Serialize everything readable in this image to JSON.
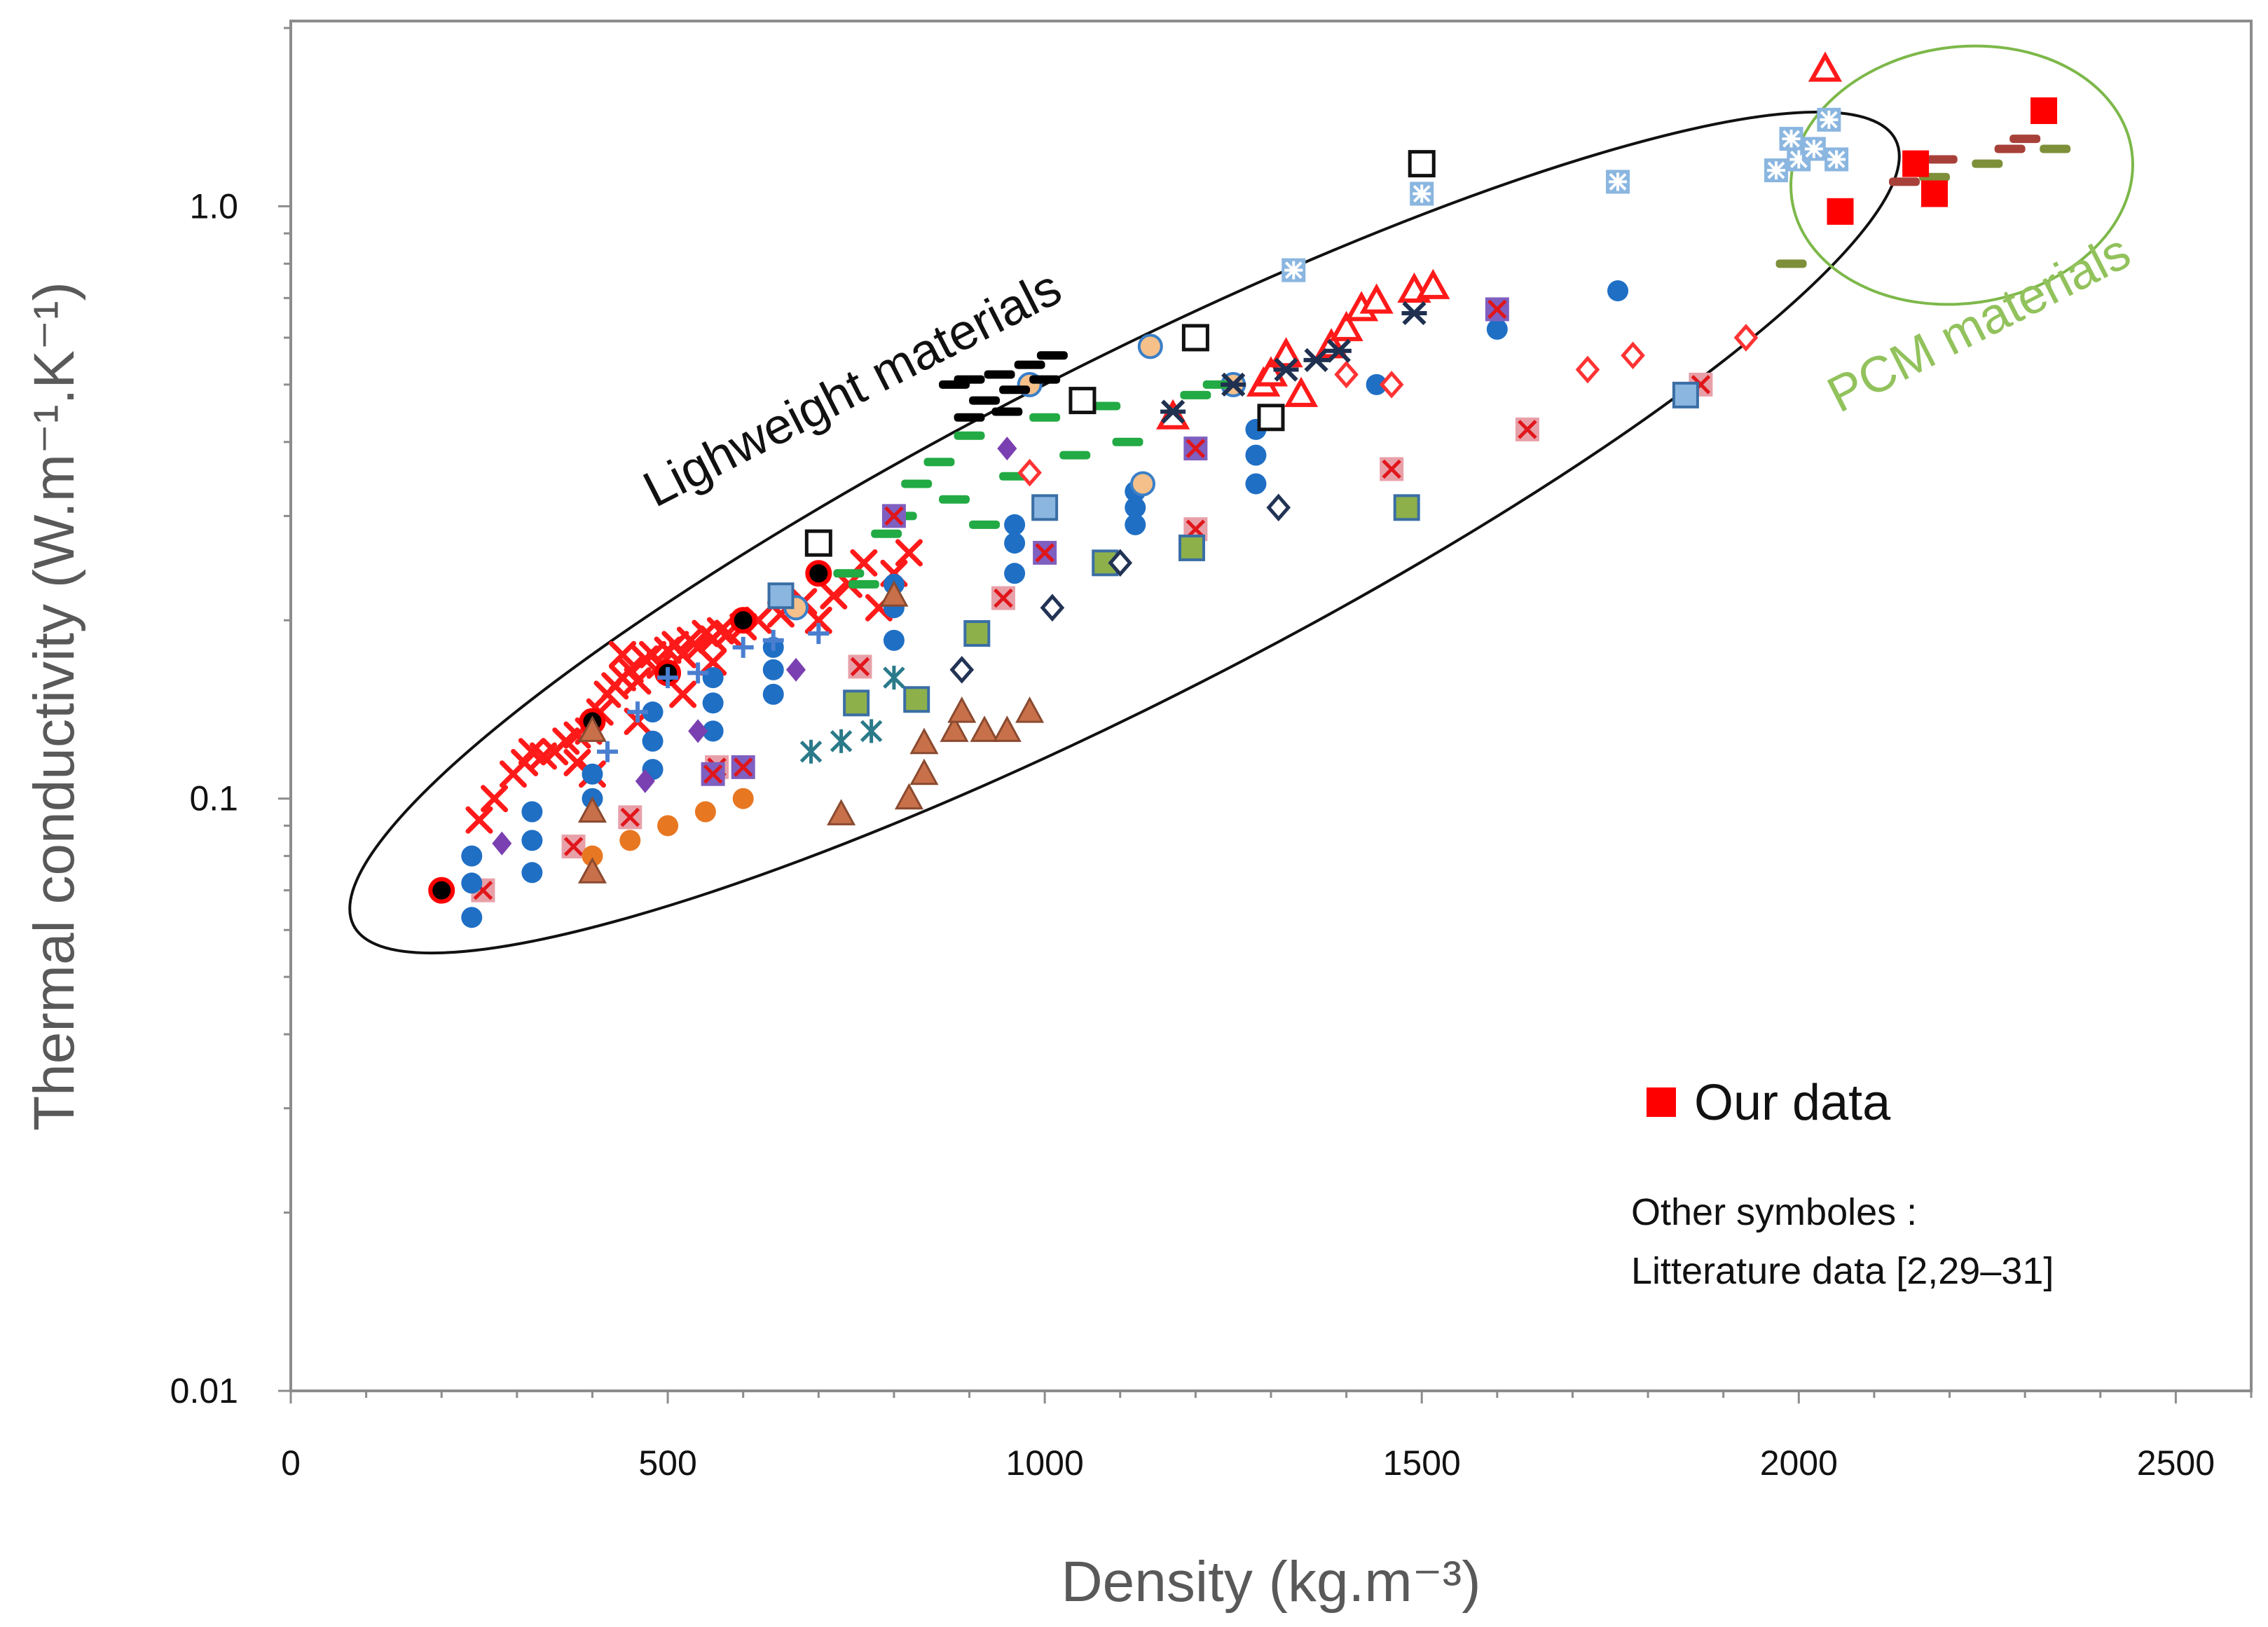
{
  "chart_data": {
    "type": "scatter",
    "title": "",
    "xlabel": "Density (kg.m⁻³)",
    "ylabel": "Thermal conductivity (W.m⁻¹.K⁻¹)",
    "x_axis": {
      "scale": "linear",
      "range": [
        0,
        2600
      ],
      "ticks": [
        0,
        500,
        1000,
        1500,
        2000,
        2500
      ]
    },
    "y_axis": {
      "scale": "log",
      "range": [
        0.01,
        2.0
      ],
      "ticks": [
        0.01,
        0.1,
        1.0
      ],
      "tick_labels": [
        "0.01",
        "0.1",
        "1.0"
      ]
    },
    "grid": false,
    "regions": [
      {
        "label": "Lighweight materials",
        "color": "#111111"
      },
      {
        "label": "PCM materials",
        "color": "#92c25c"
      }
    ],
    "legend": {
      "label": "Our data",
      "placement": "lower-right",
      "color": "#ff0000"
    },
    "note": [
      "Other symboles :",
      "Litterature data [2,29–31]"
    ],
    "series": [
      {
        "name": "Our data",
        "marker": "square-filled",
        "color": "#ff0000",
        "points": [
          [
            2055,
            0.98
          ],
          [
            2155,
            1.18
          ],
          [
            2180,
            1.05
          ],
          [
            2325,
            1.45
          ]
        ]
      },
      {
        "name": "Lit. red crosses",
        "marker": "x",
        "color": "#ff1a1a",
        "points": [
          [
            250,
            0.092
          ],
          [
            270,
            0.1
          ],
          [
            295,
            0.11
          ],
          [
            310,
            0.115
          ],
          [
            320,
            0.12
          ],
          [
            335,
            0.118
          ],
          [
            350,
            0.12
          ],
          [
            365,
            0.125
          ],
          [
            380,
            0.128
          ],
          [
            395,
            0.13
          ],
          [
            410,
            0.14
          ],
          [
            420,
            0.15
          ],
          [
            430,
            0.155
          ],
          [
            440,
            0.16
          ],
          [
            450,
            0.165
          ],
          [
            460,
            0.158
          ],
          [
            470,
            0.172
          ],
          [
            480,
            0.175
          ],
          [
            490,
            0.168
          ],
          [
            500,
            0.178
          ],
          [
            510,
            0.182
          ],
          [
            520,
            0.175
          ],
          [
            530,
            0.185
          ],
          [
            540,
            0.18
          ],
          [
            550,
            0.19
          ],
          [
            560,
            0.186
          ],
          [
            570,
            0.192
          ],
          [
            580,
            0.19
          ],
          [
            600,
            0.195
          ],
          [
            620,
            0.2
          ],
          [
            650,
            0.205
          ],
          [
            680,
            0.215
          ],
          [
            700,
            0.2
          ],
          [
            720,
            0.22
          ],
          [
            740,
            0.23
          ],
          [
            760,
            0.25
          ],
          [
            780,
            0.21
          ],
          [
            800,
            0.24
          ],
          [
            820,
            0.26
          ],
          [
            440,
            0.175
          ],
          [
            460,
            0.135
          ],
          [
            520,
            0.15
          ],
          [
            560,
            0.17
          ],
          [
            380,
            0.115
          ],
          [
            400,
            0.11
          ]
        ]
      },
      {
        "name": "Lit. red squares with cross",
        "marker": "square-x",
        "color": "#e8a0a8",
        "points": [
          [
            255,
            0.07
          ],
          [
            375,
            0.083
          ],
          [
            450,
            0.093
          ],
          [
            565,
            0.113
          ],
          [
            755,
            0.167
          ],
          [
            945,
            0.218
          ],
          [
            1200,
            0.285
          ],
          [
            1460,
            0.36
          ],
          [
            1640,
            0.42
          ],
          [
            1870,
            0.5
          ]
        ]
      },
      {
        "name": "Lit. blue circles",
        "marker": "circle",
        "color": "#1f6fc5",
        "points": [
          [
            240,
            0.063
          ],
          [
            240,
            0.072
          ],
          [
            240,
            0.08
          ],
          [
            320,
            0.075
          ],
          [
            320,
            0.085
          ],
          [
            320,
            0.095
          ],
          [
            400,
            0.1
          ],
          [
            400,
            0.11
          ],
          [
            480,
            0.112
          ],
          [
            480,
            0.125
          ],
          [
            480,
            0.14
          ],
          [
            560,
            0.13
          ],
          [
            560,
            0.145
          ],
          [
            560,
            0.16
          ],
          [
            640,
            0.15
          ],
          [
            640,
            0.165
          ],
          [
            640,
            0.18
          ],
          [
            800,
            0.185
          ],
          [
            800,
            0.21
          ],
          [
            800,
            0.23
          ],
          [
            960,
            0.24
          ],
          [
            960,
            0.27
          ],
          [
            960,
            0.29
          ],
          [
            1120,
            0.29
          ],
          [
            1120,
            0.31
          ],
          [
            1120,
            0.33
          ],
          [
            1280,
            0.34
          ],
          [
            1280,
            0.38
          ],
          [
            1280,
            0.42
          ],
          [
            1440,
            0.5
          ],
          [
            1600,
            0.62
          ],
          [
            1760,
            0.72
          ]
        ]
      },
      {
        "name": "Lit. orange circles",
        "marker": "circle",
        "color": "#e87722",
        "points": [
          [
            400,
            0.08
          ],
          [
            450,
            0.085
          ],
          [
            500,
            0.09
          ],
          [
            550,
            0.095
          ],
          [
            600,
            0.1
          ]
        ]
      },
      {
        "name": "Lit. light-orange circles",
        "marker": "circle-outlined",
        "color": "#f5c08a",
        "points": [
          [
            980,
            0.5
          ],
          [
            1140,
            0.58
          ],
          [
            1250,
            0.5
          ],
          [
            1130,
            0.34
          ],
          [
            670,
            0.21
          ]
        ]
      },
      {
        "name": "Lit. black dots",
        "marker": "dot-ringed",
        "color": "#000000",
        "points": [
          [
            200,
            0.07
          ],
          [
            400,
            0.135
          ],
          [
            500,
            0.163
          ],
          [
            600,
            0.2
          ],
          [
            700,
            0.24
          ]
        ]
      },
      {
        "name": "Lit. black dashes",
        "marker": "dash",
        "color": "#000000",
        "points": [
          [
            880,
            0.5
          ],
          [
            900,
            0.44
          ],
          [
            920,
            0.47
          ],
          [
            940,
            0.52
          ],
          [
            960,
            0.49
          ],
          [
            980,
            0.54
          ],
          [
            1000,
            0.51
          ],
          [
            1010,
            0.56
          ],
          [
            950,
            0.45
          ],
          [
            900,
            0.51
          ]
        ]
      },
      {
        "name": "Lit. green dashes",
        "marker": "dash",
        "color": "#22aa44",
        "points": [
          [
            740,
            0.24
          ],
          [
            760,
            0.23
          ],
          [
            790,
            0.28
          ],
          [
            810,
            0.3
          ],
          [
            830,
            0.34
          ],
          [
            860,
            0.37
          ],
          [
            880,
            0.32
          ],
          [
            900,
            0.41
          ],
          [
            920,
            0.29
          ],
          [
            960,
            0.35
          ],
          [
            1000,
            0.44
          ],
          [
            1040,
            0.38
          ],
          [
            1080,
            0.46
          ],
          [
            1110,
            0.4
          ],
          [
            1200,
            0.48
          ],
          [
            1230,
            0.5
          ]
        ]
      },
      {
        "name": "Lit. red triangles",
        "marker": "triangle-open",
        "color": "#ff1a1a",
        "points": [
          [
            1170,
            0.44
          ],
          [
            1290,
            0.5
          ],
          [
            1300,
            0.52
          ],
          [
            1320,
            0.56
          ],
          [
            1340,
            0.48
          ],
          [
            1380,
            0.58
          ],
          [
            1400,
            0.62
          ],
          [
            1420,
            0.67
          ],
          [
            1440,
            0.69
          ],
          [
            1490,
            0.72
          ],
          [
            1515,
            0.73
          ],
          [
            2035,
            1.7
          ]
        ]
      },
      {
        "name": "Lit. brown triangles",
        "marker": "triangle",
        "color": "#c8704a",
        "points": [
          [
            400,
            0.075
          ],
          [
            400,
            0.095
          ],
          [
            400,
            0.13
          ],
          [
            730,
            0.094
          ],
          [
            820,
            0.1
          ],
          [
            840,
            0.11
          ],
          [
            840,
            0.124
          ],
          [
            880,
            0.13
          ],
          [
            890,
            0.14
          ],
          [
            920,
            0.13
          ],
          [
            950,
            0.13
          ],
          [
            980,
            0.14
          ],
          [
            800,
            0.22
          ]
        ]
      },
      {
        "name": "Lit. green squares",
        "marker": "square",
        "color": "#8db04a",
        "points": [
          [
            750,
            0.145
          ],
          [
            830,
            0.147
          ],
          [
            910,
            0.19
          ],
          [
            1080,
            0.25
          ],
          [
            1195,
            0.265
          ],
          [
            1480,
            0.31
          ]
        ]
      },
      {
        "name": "Lit. light-blue squares",
        "marker": "square",
        "color": "#8ab6e0",
        "points": [
          [
            650,
            0.22
          ],
          [
            1000,
            0.31
          ],
          [
            1850,
            0.48
          ]
        ]
      },
      {
        "name": "Lit. open black squares",
        "marker": "square-open",
        "color": "#111111",
        "points": [
          [
            700,
            0.27
          ],
          [
            1050,
            0.47
          ],
          [
            1200,
            0.6
          ],
          [
            1300,
            0.44
          ],
          [
            1500,
            1.18
          ]
        ]
      },
      {
        "name": "Lit. purple squares with cross",
        "marker": "square-x",
        "color": "#7f5fc0",
        "points": [
          [
            560,
            0.11
          ],
          [
            600,
            0.113
          ],
          [
            800,
            0.3
          ],
          [
            1000,
            0.26
          ],
          [
            1200,
            0.39
          ],
          [
            1600,
            0.67
          ]
        ]
      },
      {
        "name": "Lit. purple diamonds",
        "marker": "diamond",
        "color": "#7a3fb0",
        "points": [
          [
            280,
            0.084
          ],
          [
            470,
            0.107
          ],
          [
            540,
            0.13
          ],
          [
            670,
            0.165
          ],
          [
            950,
            0.39
          ]
        ]
      },
      {
        "name": "Lit. black diamonds",
        "marker": "diamond-open",
        "color": "#223355",
        "points": [
          [
            890,
            0.165
          ],
          [
            1010,
            0.21
          ],
          [
            1100,
            0.25
          ],
          [
            1310,
            0.31
          ]
        ]
      },
      {
        "name": "Lit. red diamonds",
        "marker": "diamond-open",
        "color": "#ff3333",
        "points": [
          [
            980,
            0.355
          ],
          [
            1400,
            0.52
          ],
          [
            1460,
            0.5
          ],
          [
            1720,
            0.53
          ],
          [
            1780,
            0.56
          ],
          [
            1930,
            0.6
          ]
        ]
      },
      {
        "name": "Lit. dark-navy stars",
        "marker": "star",
        "color": "#1f3050",
        "points": [
          [
            1170,
            0.45
          ],
          [
            1250,
            0.5
          ],
          [
            1320,
            0.53
          ],
          [
            1360,
            0.55
          ],
          [
            1390,
            0.57
          ],
          [
            1490,
            0.66
          ]
        ]
      },
      {
        "name": "Lit. teal asterisks",
        "marker": "asterisk",
        "color": "#2a7a8a",
        "points": [
          [
            690,
            0.12
          ],
          [
            730,
            0.125
          ],
          [
            770,
            0.13
          ],
          [
            800,
            0.16
          ]
        ]
      },
      {
        "name": "Lit. blue pluses",
        "marker": "plus",
        "color": "#4a7fd0",
        "points": [
          [
            420,
            0.12
          ],
          [
            460,
            0.14
          ],
          [
            500,
            0.16
          ],
          [
            540,
            0.163
          ],
          [
            600,
            0.18
          ],
          [
            640,
            0.185
          ],
          [
            700,
            0.19
          ]
        ]
      },
      {
        "name": "Lit. blue snowflake squares",
        "marker": "square-asterisk",
        "color": "#8ab6e0",
        "points": [
          [
            1330,
            0.78
          ],
          [
            1500,
            1.05
          ],
          [
            1760,
            1.1
          ],
          [
            1970,
            1.15
          ],
          [
            1990,
            1.3
          ],
          [
            2000,
            1.2
          ],
          [
            2020,
            1.25
          ],
          [
            2040,
            1.4
          ],
          [
            2050,
            1.2
          ]
        ]
      },
      {
        "name": "Lit. PCM dark-red dashes",
        "marker": "dash",
        "color": "#a8403a",
        "points": [
          [
            2140,
            1.1
          ],
          [
            2190,
            1.2
          ],
          [
            2280,
            1.25
          ],
          [
            2300,
            1.3
          ]
        ]
      },
      {
        "name": "Lit. PCM olive dashes",
        "marker": "dash",
        "color": "#7e8f3a",
        "points": [
          [
            1990,
            0.8
          ],
          [
            2180,
            1.12
          ],
          [
            2250,
            1.18
          ],
          [
            2340,
            1.25
          ]
        ]
      }
    ]
  }
}
